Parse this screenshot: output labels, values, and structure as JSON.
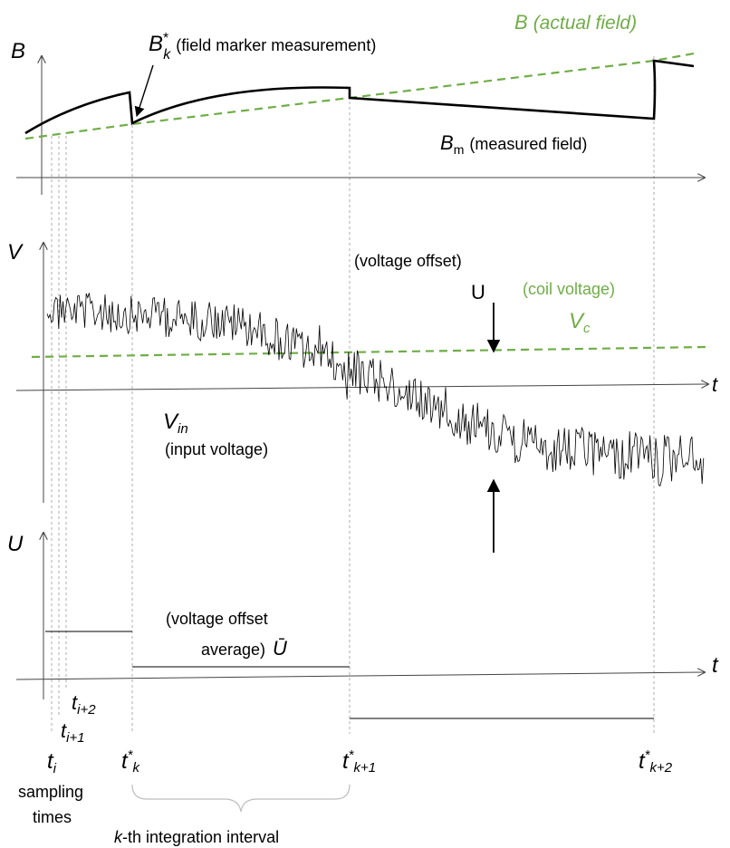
{
  "panel_b": {
    "axis_symbol": "B",
    "marker_symbol": "B",
    "marker_sup": "*",
    "marker_sub": "k",
    "marker_desc": "(field marker measurement)",
    "actual_symbol": "B",
    "actual_desc": "(actual field)",
    "measured_symbol": "B",
    "measured_sub": "m",
    "measured_desc": "(measured field)"
  },
  "panel_v": {
    "axis_symbol": "V",
    "offset_desc": "(voltage offset)",
    "offset_symbol": "U",
    "coil_desc": "(coil voltage)",
    "coil_symbol": "V",
    "coil_sub": "c",
    "input_symbol": "V",
    "input_sub": "in",
    "input_desc": "(input voltage)",
    "time_symbol": "t"
  },
  "panel_u": {
    "axis_symbol": "U",
    "avg_line1": "(voltage offset",
    "avg_line2": "average)",
    "avg_symbol": "Ū",
    "time_symbol": "t"
  },
  "time_labels": {
    "ti": {
      "base": "t",
      "sub": "i"
    },
    "ti1": {
      "base": "t",
      "sub": "i+1"
    },
    "ti2": {
      "base": "t",
      "sub": "i+2"
    },
    "tk": {
      "base": "t",
      "sup": "*",
      "sub": "k"
    },
    "tk1": {
      "base": "t",
      "sup": "*",
      "sub": "k+1"
    },
    "tk2": {
      "base": "t",
      "sup": "*",
      "sub": "k+2"
    },
    "sampling_line1": "sampling",
    "sampling_line2": "times",
    "interval_k": "k",
    "interval_rest": "-th integration interval"
  },
  "colors": {
    "green": "#70ad47",
    "black": "#000000",
    "guide": "#9a9a9a"
  }
}
